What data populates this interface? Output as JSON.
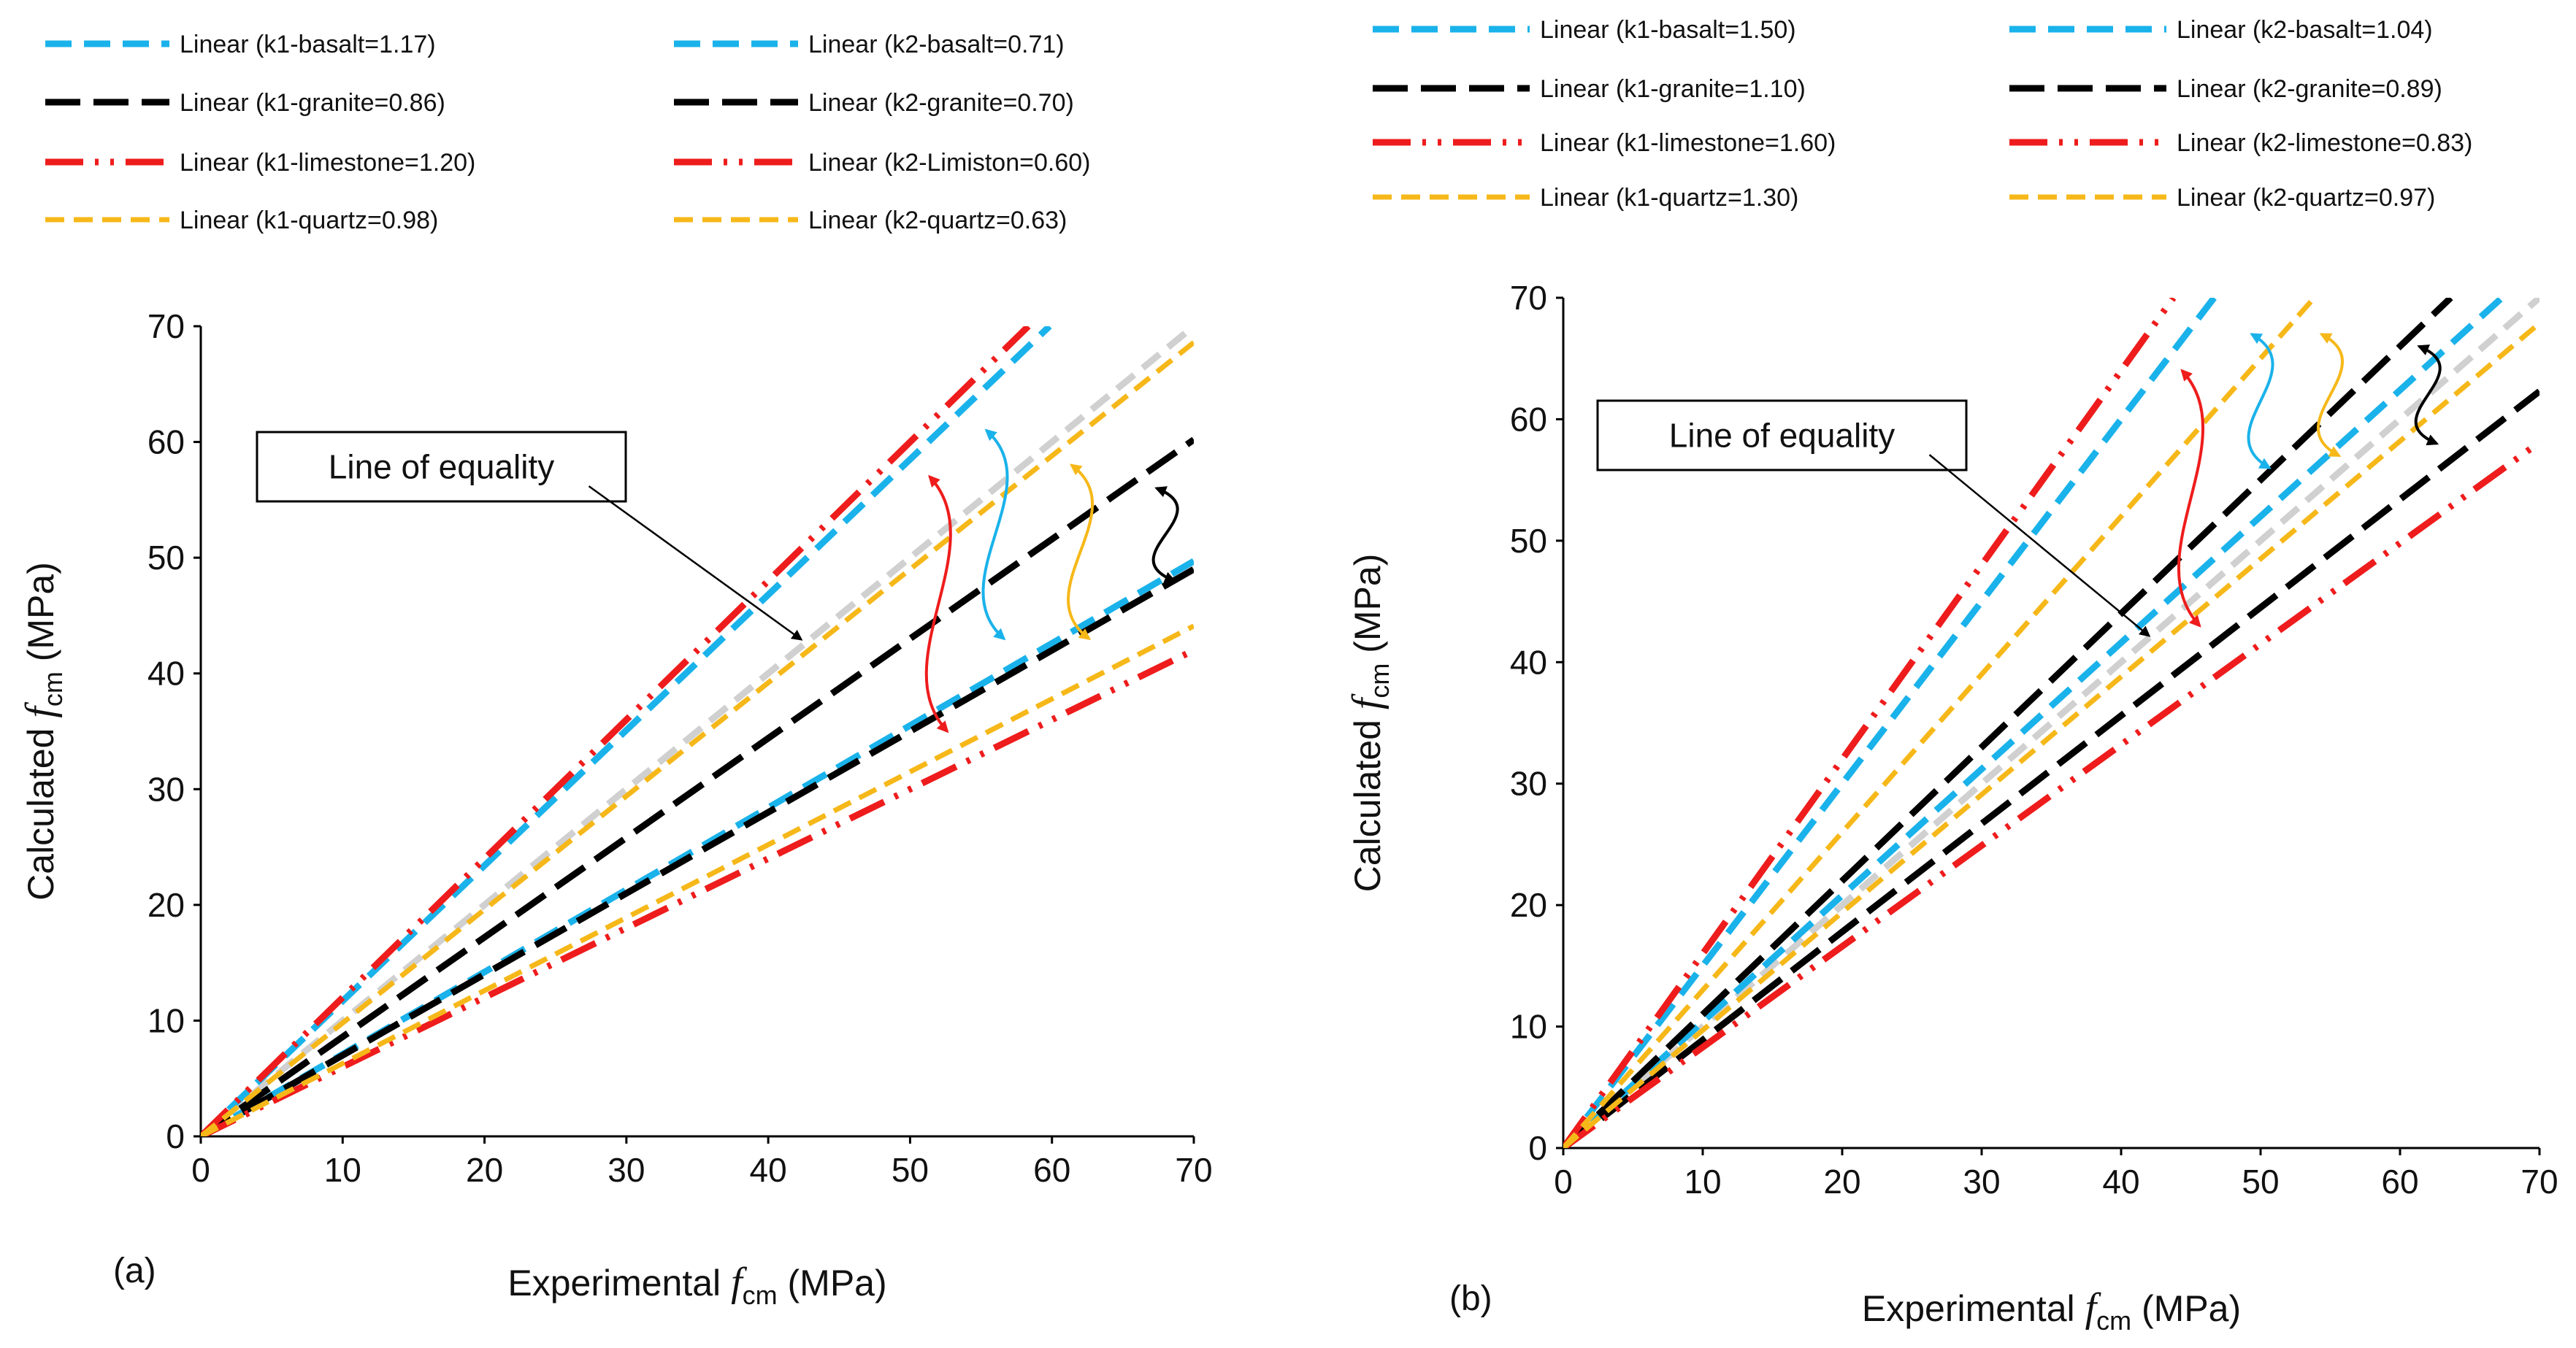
{
  "colors": {
    "basalt": "#1ab2ea",
    "granite": "#000000",
    "limestone": "#ee1c1c",
    "quartz": "#f6b819",
    "equality": "#d0d0d0"
  },
  "chart_data": [
    {
      "type": "line",
      "panel_label": "(a)",
      "xlabel_prefix": "Experimental ",
      "xlabel_var": "f",
      "xlabel_sub": "cm",
      "xlabel_unit": "  (MPa)",
      "ylabel_prefix": "Calculated ",
      "ylabel_var": "f",
      "ylabel_sub": "cm",
      "ylabel_unit": "  (MPa)",
      "xlim": [
        0,
        70
      ],
      "ylim": [
        0,
        70
      ],
      "xticks": [
        "0",
        "10",
        "20",
        "30",
        "40",
        "50",
        "60",
        "70"
      ],
      "yticks": [
        "0",
        "10",
        "20",
        "30",
        "40",
        "50",
        "60",
        "70"
      ],
      "grid": false,
      "legend_position": "top",
      "annotation": "Line of equality",
      "series": [
        {
          "name": "Linear (k1-basalt=1.17)",
          "slope": 1.17,
          "material": "basalt"
        },
        {
          "name": "Linear (k2-basalt=0.71)",
          "slope": 0.71,
          "material": "basalt"
        },
        {
          "name": "Linear (k1-granite=0.86)",
          "slope": 0.86,
          "material": "granite"
        },
        {
          "name": "Linear (k2-granite=0.70)",
          "slope": 0.7,
          "material": "granite"
        },
        {
          "name": "Linear (k1-limestone=1.20)",
          "slope": 1.2,
          "material": "limestone"
        },
        {
          "name": "Linear (k2-Limiston=0.60)",
          "slope": 0.6,
          "material": "limestone"
        },
        {
          "name": "Linear (k1-quartz=0.98)",
          "slope": 0.98,
          "material": "quartz"
        },
        {
          "name": "Linear (k2-quartz=0.63)",
          "slope": 0.63,
          "material": "quartz"
        }
      ],
      "equality_slope": 1.0,
      "range_arrows": [
        {
          "material": "limestone",
          "x": 52,
          "from": 57,
          "to": 35
        },
        {
          "material": "basalt",
          "x": 56,
          "from": 61,
          "to": 43
        },
        {
          "material": "quartz",
          "x": 62,
          "from": 58,
          "to": 43
        },
        {
          "material": "granite",
          "x": 68,
          "from": 56,
          "to": 48
        }
      ]
    },
    {
      "type": "line",
      "panel_label": "(b)",
      "xlabel_prefix": "Experimental  ",
      "xlabel_var": "f",
      "xlabel_sub": "cm",
      "xlabel_unit": " (MPa)",
      "ylabel_prefix": "Calculated ",
      "ylabel_var": "f",
      "ylabel_sub": "cm",
      "ylabel_unit": "  (MPa)",
      "xlim": [
        0,
        70
      ],
      "ylim": [
        0,
        70
      ],
      "xticks": [
        "0",
        "10",
        "20",
        "30",
        "40",
        "50",
        "60",
        "70"
      ],
      "yticks": [
        "0",
        "10",
        "20",
        "30",
        "40",
        "50",
        "60",
        "70"
      ],
      "grid": false,
      "legend_position": "top",
      "annotation": "Line of equality",
      "series": [
        {
          "name": "Linear (k1-basalt=1.50)",
          "slope": 1.5,
          "material": "basalt"
        },
        {
          "name": "Linear (k2-basalt=1.04)",
          "slope": 1.04,
          "material": "basalt"
        },
        {
          "name": "Linear (k1-granite=1.10)",
          "slope": 1.1,
          "material": "granite"
        },
        {
          "name": "Linear (k2-granite=0.89)",
          "slope": 0.89,
          "material": "granite"
        },
        {
          "name": "Linear (k1-limestone=1.60)",
          "slope": 1.6,
          "material": "limestone"
        },
        {
          "name": "Linear (k2-limestone=0.83)",
          "slope": 0.83,
          "material": "limestone"
        },
        {
          "name": "Linear (k1-quartz=1.30)",
          "slope": 1.3,
          "material": "quartz"
        },
        {
          "name": "Linear (k2-quartz=0.97)",
          "slope": 0.97,
          "material": "quartz"
        }
      ],
      "equality_slope": 1.0,
      "range_arrows": [
        {
          "material": "limestone",
          "x": 45,
          "from": 64,
          "to": 43
        },
        {
          "material": "basalt",
          "x": 50,
          "from": 67,
          "to": 56
        },
        {
          "material": "quartz",
          "x": 55,
          "from": 67,
          "to": 57
        },
        {
          "material": "granite",
          "x": 62,
          "from": 66,
          "to": 58
        }
      ]
    }
  ]
}
